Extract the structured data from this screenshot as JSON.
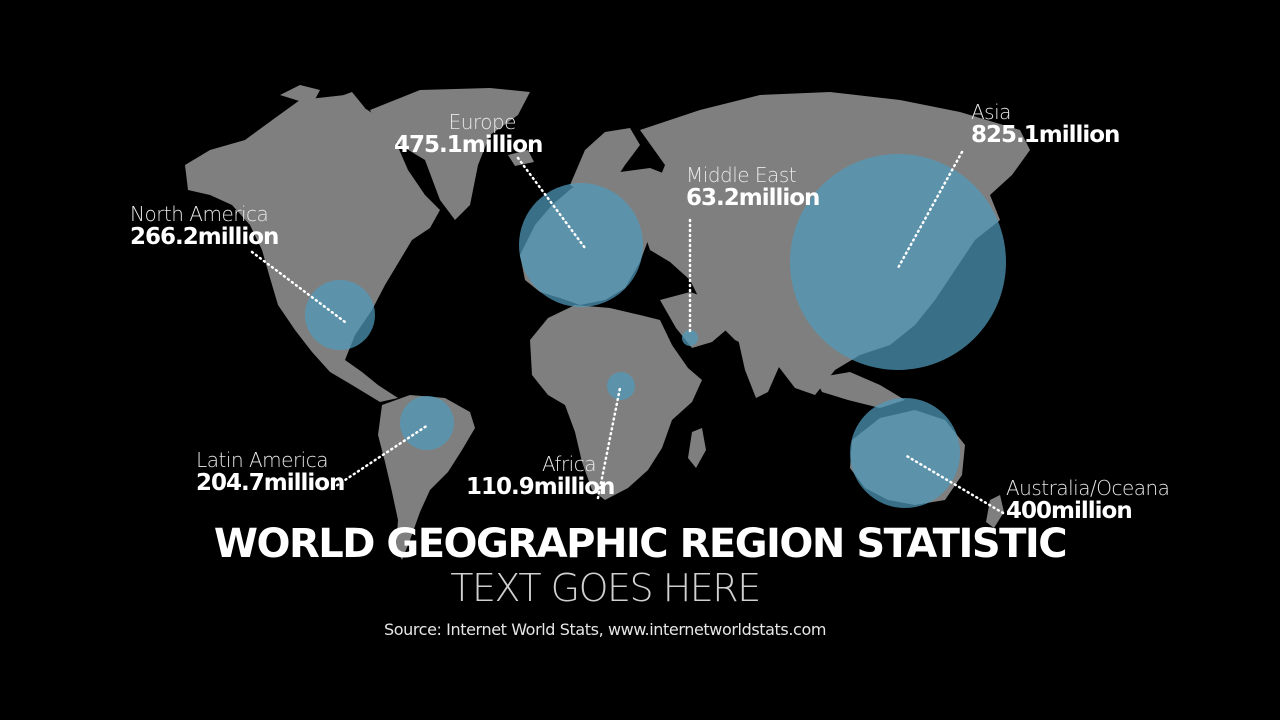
{
  "title": "WORLD GEOGRAPHIC REGION STATISTIC",
  "subtitle": "TEXT GOES HERE",
  "source": "Source: Internet World Stats, www.internetworldstats.com",
  "colors": {
    "background": "#000000",
    "land": "#7f7f7f",
    "bubble": "#4f9bbd",
    "text": "#ffffff"
  },
  "regions": [
    {
      "name": "North America",
      "value": "266.2million",
      "amount": 266.2
    },
    {
      "name": "Europe",
      "value": "475.1million",
      "amount": 475.1
    },
    {
      "name": "Middle East",
      "value": "63.2million",
      "amount": 63.2
    },
    {
      "name": "Asia",
      "value": "825.1million",
      "amount": 825.1
    },
    {
      "name": "Latin America",
      "value": "204.7million",
      "amount": 204.7
    },
    {
      "name": "Africa",
      "value": "110.9million",
      "amount": 110.9
    },
    {
      "name": "Australia/Oceana",
      "value": "400million",
      "amount": 400
    }
  ]
}
